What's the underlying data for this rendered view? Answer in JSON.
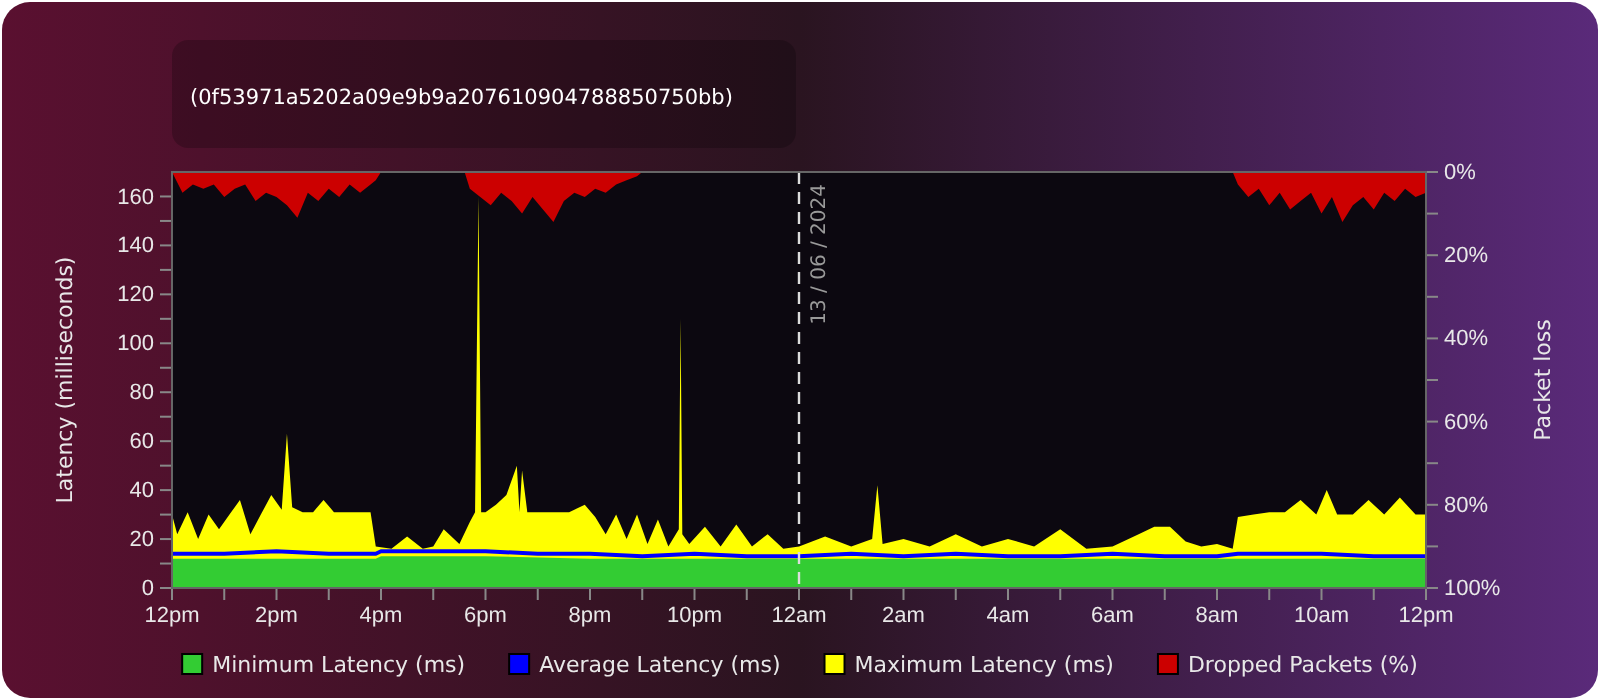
{
  "chart_data": {
    "type": "area",
    "subtitle": "(0f53971a5202a09e9b9a207610904788850750bb)",
    "ylabel": "Latency (milliseconds)",
    "y2label": "Packet loss",
    "xlim": [
      "2024-06-12T12:00",
      "2024-06-13T12:00"
    ],
    "xticks": [
      {
        "value": "2024-06-12T12:00",
        "label": "12pm"
      },
      {
        "value": "2024-06-12T13:00",
        "label": null
      },
      {
        "value": "2024-06-12T14:00",
        "label": "2pm"
      },
      {
        "value": "2024-06-12T15:00",
        "label": null
      },
      {
        "value": "2024-06-12T16:00",
        "label": "4pm"
      },
      {
        "value": "2024-06-12T17:00",
        "label": null
      },
      {
        "value": "2024-06-12T18:00",
        "label": "6pm"
      },
      {
        "value": "2024-06-12T19:00",
        "label": null
      },
      {
        "value": "2024-06-12T20:00",
        "label": "8pm"
      },
      {
        "value": "2024-06-12T21:00",
        "label": null
      },
      {
        "value": "2024-06-12T22:00",
        "label": "10pm"
      },
      {
        "value": "2024-06-12T23:00",
        "label": null
      },
      {
        "value": "2024-06-13T00:00",
        "label": "12am"
      },
      {
        "value": "2024-06-13T01:00",
        "label": null
      },
      {
        "value": "2024-06-13T02:00",
        "label": "2am"
      },
      {
        "value": "2024-06-13T03:00",
        "label": null
      },
      {
        "value": "2024-06-13T04:00",
        "label": "4am"
      },
      {
        "value": "2024-06-13T05:00",
        "label": null
      },
      {
        "value": "2024-06-13T06:00",
        "label": "6am"
      },
      {
        "value": "2024-06-13T07:00",
        "label": null
      },
      {
        "value": "2024-06-13T08:00",
        "label": "8am"
      },
      {
        "value": "2024-06-13T09:00",
        "label": null
      },
      {
        "value": "2024-06-13T10:00",
        "label": "10am"
      },
      {
        "value": "2024-06-13T11:00",
        "label": null
      },
      {
        "value": "2024-06-13T12:00",
        "label": "12pm"
      }
    ],
    "ylim": [
      0,
      170
    ],
    "yticks": [
      0,
      {
        "value": 10,
        "label": null
      },
      20,
      {
        "value": 30,
        "label": null
      },
      40,
      {
        "value": 50,
        "label": null
      },
      60,
      {
        "value": 70,
        "label": null
      },
      80,
      {
        "value": 90,
        "label": null
      },
      100,
      {
        "value": 110,
        "label": null
      },
      120,
      {
        "value": 130,
        "label": null
      },
      140,
      {
        "value": 150,
        "label": null
      },
      160
    ],
    "y2lim": [
      100,
      0
    ],
    "y2ticks": [
      {
        "value": 0,
        "label": "0%"
      },
      {
        "value": 10,
        "label": null
      },
      {
        "value": 20,
        "label": "20%"
      },
      {
        "value": 30,
        "label": null
      },
      {
        "value": 40,
        "label": "40%"
      },
      {
        "value": 50,
        "label": null
      },
      {
        "value": 60,
        "label": "60%"
      },
      {
        "value": 70,
        "label": null
      },
      {
        "value": 80,
        "label": "80%"
      },
      {
        "value": 90,
        "label": null
      },
      {
        "value": 100,
        "label": "100%"
      }
    ],
    "ref_lines": [
      {
        "axis": "x",
        "value": "2024-06-13T00:00",
        "label": "13 / 06 / 2024",
        "line_style": "dashed",
        "color": "#dddddd"
      }
    ],
    "legend": "bottom",
    "series": [
      {
        "name": "Minimum Latency (ms)",
        "color": "#33cc33",
        "x": [
          "2024-06-12T12:00",
          "2024-06-12T14:00",
          "2024-06-12T15:54",
          "2024-06-12T16:00",
          "2024-06-12T18:00",
          "2024-06-12T20:00",
          "2024-06-12T22:00",
          "2024-06-13T00:00",
          "2024-06-13T02:00",
          "2024-06-13T04:00",
          "2024-06-13T06:00",
          "2024-06-13T08:00",
          "2024-06-13T10:00",
          "2024-06-13T12:00"
        ],
        "values": [
          12,
          12,
          12,
          13,
          13,
          12,
          12,
          12,
          12,
          12,
          12,
          12,
          12,
          12
        ]
      },
      {
        "name": "Average Latency (ms)",
        "type": "line",
        "color": "#0000ff",
        "x": [
          "2024-06-12T12:00",
          "2024-06-12T13:00",
          "2024-06-12T14:00",
          "2024-06-12T15:00",
          "2024-06-12T15:54",
          "2024-06-12T16:00",
          "2024-06-12T17:00",
          "2024-06-12T18:00",
          "2024-06-12T19:00",
          "2024-06-12T20:00",
          "2024-06-12T21:00",
          "2024-06-12T22:00",
          "2024-06-12T23:00",
          "2024-06-13T00:00",
          "2024-06-13T01:00",
          "2024-06-13T02:00",
          "2024-06-13T03:00",
          "2024-06-13T04:00",
          "2024-06-13T05:00",
          "2024-06-13T06:00",
          "2024-06-13T07:00",
          "2024-06-13T08:00",
          "2024-06-13T08:24",
          "2024-06-13T09:00",
          "2024-06-13T10:00",
          "2024-06-13T11:00",
          "2024-06-13T12:00"
        ],
        "values": [
          14,
          14,
          15,
          14,
          14,
          15,
          15,
          15,
          14,
          14,
          13,
          14,
          13,
          13,
          14,
          13,
          14,
          13,
          13,
          14,
          13,
          13,
          14,
          14,
          14,
          13,
          13
        ]
      },
      {
        "name": "Maximum Latency (ms)",
        "color": "#ffff00",
        "x": [
          "2024-06-12T12:00",
          "2024-06-12T12:06",
          "2024-06-12T12:18",
          "2024-06-12T12:30",
          "2024-06-12T12:42",
          "2024-06-12T12:54",
          "2024-06-12T13:06",
          "2024-06-12T13:18",
          "2024-06-12T13:30",
          "2024-06-12T13:42",
          "2024-06-12T13:54",
          "2024-06-12T14:06",
          "2024-06-12T14:12",
          "2024-06-12T14:18",
          "2024-06-12T14:30",
          "2024-06-12T14:42",
          "2024-06-12T14:54",
          "2024-06-12T15:06",
          "2024-06-12T15:18",
          "2024-06-12T15:30",
          "2024-06-12T15:48",
          "2024-06-12T15:54",
          "2024-06-12T16:12",
          "2024-06-12T16:30",
          "2024-06-12T16:48",
          "2024-06-12T17:00",
          "2024-06-12T17:12",
          "2024-06-12T17:30",
          "2024-06-12T17:42",
          "2024-06-12T17:48",
          "2024-06-12T17:52",
          "2024-06-12T17:55",
          "2024-06-12T18:00",
          "2024-06-12T18:12",
          "2024-06-12T18:24",
          "2024-06-12T18:36",
          "2024-06-12T18:39",
          "2024-06-12T18:42",
          "2024-06-12T18:48",
          "2024-06-12T19:00",
          "2024-06-12T19:18",
          "2024-06-12T19:36",
          "2024-06-12T19:54",
          "2024-06-12T20:06",
          "2024-06-12T20:18",
          "2024-06-12T20:30",
          "2024-06-12T20:42",
          "2024-06-12T20:54",
          "2024-06-12T21:06",
          "2024-06-12T21:18",
          "2024-06-12T21:30",
          "2024-06-12T21:42",
          "2024-06-12T21:44",
          "2024-06-12T21:46",
          "2024-06-12T21:54",
          "2024-06-12T22:12",
          "2024-06-12T22:30",
          "2024-06-12T22:48",
          "2024-06-12T23:06",
          "2024-06-12T23:24",
          "2024-06-12T23:42",
          "2024-06-13T00:00",
          "2024-06-13T00:30",
          "2024-06-13T01:00",
          "2024-06-13T01:24",
          "2024-06-13T01:30",
          "2024-06-13T01:36",
          "2024-06-13T02:00",
          "2024-06-13T02:30",
          "2024-06-13T03:00",
          "2024-06-13T03:30",
          "2024-06-13T04:00",
          "2024-06-13T04:30",
          "2024-06-13T05:00",
          "2024-06-13T05:30",
          "2024-06-13T06:00",
          "2024-06-13T06:30",
          "2024-06-13T06:48",
          "2024-06-13T07:06",
          "2024-06-13T07:24",
          "2024-06-13T07:42",
          "2024-06-13T08:00",
          "2024-06-13T08:18",
          "2024-06-13T08:24",
          "2024-06-13T08:42",
          "2024-06-13T09:00",
          "2024-06-13T09:18",
          "2024-06-13T09:36",
          "2024-06-13T09:54",
          "2024-06-13T10:06",
          "2024-06-13T10:18",
          "2024-06-13T10:36",
          "2024-06-13T10:54",
          "2024-06-13T11:12",
          "2024-06-13T11:30",
          "2024-06-13T11:48",
          "2024-06-13T12:00"
        ],
        "values": [
          30,
          22,
          31,
          20,
          30,
          24,
          30,
          36,
          22,
          30,
          38,
          32,
          63,
          33,
          31,
          31,
          36,
          31,
          31,
          31,
          31,
          17,
          16,
          21,
          16,
          17,
          24,
          18,
          27,
          31,
          160,
          31,
          31,
          34,
          38,
          50,
          31,
          48,
          31,
          31,
          31,
          31,
          34,
          29,
          22,
          30,
          20,
          30,
          18,
          28,
          17,
          24,
          110,
          22,
          18,
          25,
          17,
          26,
          17,
          22,
          16,
          17,
          21,
          17,
          20,
          42,
          18,
          20,
          17,
          22,
          17,
          20,
          17,
          24,
          16,
          17,
          22,
          25,
          25,
          19,
          17,
          18,
          16,
          29,
          30,
          31,
          31,
          36,
          30,
          40,
          30,
          30,
          36,
          30,
          37,
          30,
          30
        ]
      },
      {
        "name": "Dropped Packets (%)",
        "axis": "y2",
        "color": "#cc0000",
        "x": [
          "2024-06-12T12:00",
          "2024-06-12T12:12",
          "2024-06-12T12:24",
          "2024-06-12T12:36",
          "2024-06-12T12:48",
          "2024-06-12T13:00",
          "2024-06-12T13:12",
          "2024-06-12T13:24",
          "2024-06-12T13:36",
          "2024-06-12T13:48",
          "2024-06-12T14:00",
          "2024-06-12T14:12",
          "2024-06-12T14:24",
          "2024-06-12T14:36",
          "2024-06-12T14:48",
          "2024-06-12T15:00",
          "2024-06-12T15:12",
          "2024-06-12T15:24",
          "2024-06-12T15:36",
          "2024-06-12T15:48",
          "2024-06-12T15:54",
          "2024-06-12T16:00",
          "2024-06-12T17:36",
          "2024-06-12T17:42",
          "2024-06-12T17:54",
          "2024-06-12T18:06",
          "2024-06-12T18:18",
          "2024-06-12T18:30",
          "2024-06-12T18:42",
          "2024-06-12T18:54",
          "2024-06-12T19:06",
          "2024-06-12T19:18",
          "2024-06-12T19:30",
          "2024-06-12T19:42",
          "2024-06-12T19:54",
          "2024-06-12T20:06",
          "2024-06-12T20:18",
          "2024-06-12T20:30",
          "2024-06-12T20:42",
          "2024-06-12T20:54",
          "2024-06-12T21:00",
          "2024-06-12T23:00",
          "2024-06-13T08:18",
          "2024-06-13T08:24",
          "2024-06-13T08:36",
          "2024-06-13T08:48",
          "2024-06-13T09:00",
          "2024-06-13T09:12",
          "2024-06-13T09:24",
          "2024-06-13T09:36",
          "2024-06-13T09:48",
          "2024-06-13T10:00",
          "2024-06-13T10:12",
          "2024-06-13T10:24",
          "2024-06-13T10:36",
          "2024-06-13T10:48",
          "2024-06-13T11:00",
          "2024-06-13T11:12",
          "2024-06-13T11:24",
          "2024-06-13T11:36",
          "2024-06-13T11:48",
          "2024-06-13T12:00"
        ],
        "values": [
          0,
          5,
          3,
          4,
          3,
          6,
          4,
          3,
          7,
          5,
          6,
          8,
          11,
          5,
          7,
          4,
          6,
          3,
          5,
          3,
          2,
          0,
          0,
          4,
          6,
          8,
          5,
          7,
          10,
          6,
          9,
          12,
          7,
          5,
          6,
          4,
          5,
          3,
          2,
          1,
          0,
          0,
          0,
          3,
          6,
          4,
          8,
          5,
          9,
          7,
          5,
          10,
          6,
          12,
          8,
          6,
          9,
          5,
          7,
          4,
          6,
          5
        ]
      }
    ]
  }
}
